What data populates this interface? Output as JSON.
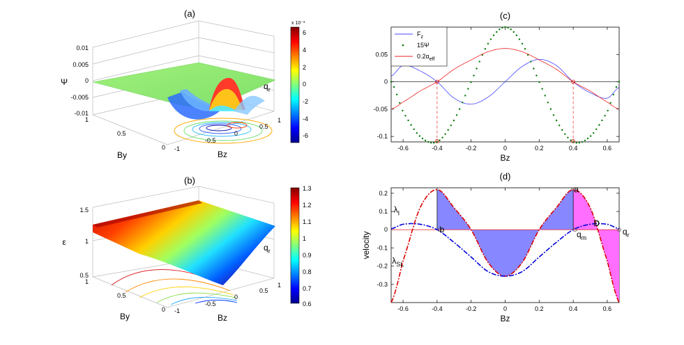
{
  "panels": {
    "a": {
      "title": "(a)",
      "zlabel": "Ψ",
      "ylabel": "By",
      "xlabel": "Bz",
      "z_ticks": [
        "0.01",
        "0.005",
        "0",
        "-0.005",
        "-0.01"
      ],
      "y_ticks": [
        "1",
        "0.5",
        "0"
      ],
      "x_ticks": [
        "-1",
        "-0.5",
        "0",
        "0.5",
        "1"
      ],
      "annotation": "qr",
      "colorbar": {
        "ticks": [
          "6",
          "4",
          "2",
          "0",
          "-2",
          "-4",
          "-6"
        ],
        "exponent": "x 10⁻³"
      }
    },
    "b": {
      "title": "(b)",
      "zlabel": "ε",
      "ylabel": "By",
      "xlabel": "Bz",
      "z_ticks": [
        "1.5",
        "1",
        "0.5"
      ],
      "y_ticks": [
        "1",
        "0.5",
        "0"
      ],
      "x_ticks": [
        "-1",
        "-0.5",
        "0",
        "0.5",
        "1"
      ],
      "annotation": "qr",
      "colorbar": {
        "ticks": [
          "1.3",
          "1.2",
          "1.1",
          "1",
          "0.9",
          "0.8",
          "0.7",
          "0.6"
        ]
      }
    }
  },
  "chart_data": [
    {
      "panel": "c",
      "type": "line",
      "title": "(c)",
      "xlabel": "Bz",
      "ylabel": "",
      "xlim": [
        -0.67,
        0.67
      ],
      "ylim": [
        -0.11,
        0.1
      ],
      "x_ticks": [
        -0.6,
        -0.4,
        -0.2,
        0,
        0.2,
        0.4,
        0.6
      ],
      "x_tick_labels": [
        "-0.6",
        "-0.4",
        "-0.2",
        "0",
        "0.2",
        "0.4",
        "0.6"
      ],
      "y_ticks": [
        0.05,
        0,
        -0.05,
        -0.1
      ],
      "y_tick_labels": [
        "0.05",
        "0",
        "-0.05",
        "-0.1"
      ],
      "legend_position": "top-left",
      "series": [
        {
          "name": "F",
          "sub": "z",
          "color": "#4444ff",
          "style": "solid",
          "x": [
            -0.67,
            -0.6,
            -0.5,
            -0.4,
            -0.3,
            -0.2,
            -0.1,
            0,
            0.1,
            0.2,
            0.3,
            0.4,
            0.5,
            0.6,
            0.67
          ],
          "y": [
            0.01,
            0.03,
            0.02,
            0,
            -0.03,
            -0.041,
            -0.028,
            0,
            0.028,
            0.041,
            0.03,
            0,
            -0.02,
            -0.03,
            -0.01
          ]
        },
        {
          "name": "15Ψ",
          "sub": "",
          "color": "#007700",
          "style": "dots",
          "x": [
            -0.67,
            -0.6,
            -0.5,
            -0.4,
            -0.3,
            -0.2,
            -0.1,
            0,
            0.1,
            0.2,
            0.3,
            0.4,
            0.5,
            0.6,
            0.67
          ],
          "y": [
            0,
            -0.055,
            -0.1,
            -0.11,
            -0.07,
            0,
            0.07,
            0.1,
            0.07,
            0,
            -0.07,
            -0.11,
            -0.1,
            -0.055,
            0
          ]
        },
        {
          "name": "0.2α",
          "sub": "eff",
          "color": "#ee2222",
          "style": "solid",
          "x": [
            -0.67,
            -0.6,
            -0.5,
            -0.4,
            -0.3,
            -0.2,
            -0.1,
            0,
            0.1,
            0.2,
            0.3,
            0.4,
            0.5,
            0.6,
            0.67
          ],
          "y": [
            -0.05,
            -0.037,
            -0.017,
            0,
            0.023,
            0.04,
            0.055,
            0.061,
            0.055,
            0.04,
            0.023,
            0,
            -0.017,
            -0.037,
            -0.05
          ]
        }
      ],
      "markers_x": [
        -0.4,
        0.4
      ]
    },
    {
      "panel": "d",
      "type": "line",
      "title": "(d)",
      "xlabel": "Bz",
      "ylabel": "velocity",
      "xlim": [
        -0.67,
        0.67
      ],
      "ylim": [
        -0.4,
        0.23
      ],
      "x_ticks": [
        -0.6,
        -0.4,
        -0.2,
        0,
        0.2,
        0.4,
        0.6
      ],
      "x_tick_labels": [
        "-0.6",
        "-0.4",
        "-0.2",
        "0",
        "0.2",
        "0.4",
        "0.6"
      ],
      "y_ticks": [
        0.2,
        0.1,
        0,
        -0.1,
        -0.2,
        -0.3
      ],
      "y_tick_labels": [
        "0.2",
        "0.1",
        "0",
        "-0.1",
        "-0.2",
        "-0.3"
      ],
      "series": [
        {
          "name": "λSL",
          "color": "#dd0000",
          "style": "dashdot",
          "x": [
            -0.67,
            -0.6,
            -0.5,
            -0.4,
            -0.3,
            -0.2,
            -0.1,
            0,
            0.1,
            0.2,
            0.3,
            0.4,
            0.5,
            0.6,
            0.67
          ],
          "y": [
            -0.4,
            -0.17,
            0.12,
            0.22,
            0.12,
            0,
            -0.18,
            -0.255,
            -0.18,
            0,
            0.12,
            0.22,
            0.12,
            -0.17,
            -0.4
          ]
        },
        {
          "name": "λI",
          "color": "#0000dd",
          "style": "dashdot",
          "x": [
            -0.67,
            -0.6,
            -0.5,
            -0.4,
            -0.3,
            -0.2,
            -0.1,
            0,
            0.1,
            0.2,
            0.3,
            0.4,
            0.5,
            0.6,
            0.67
          ],
          "y": [
            0.005,
            0.03,
            0.03,
            0,
            -0.07,
            -0.15,
            -0.23,
            -0.255,
            -0.23,
            -0.15,
            -0.07,
            0,
            0.03,
            0.03,
            0.005
          ]
        }
      ],
      "labels": [
        {
          "text": "λ",
          "sub": "I",
          "x": -0.655,
          "y": 0.11
        },
        {
          "text": "λ",
          "sub": "SL",
          "x": -0.665,
          "y": -0.17
        },
        {
          "text": "a",
          "sub": "",
          "x": 0.405,
          "y": 0.22
        },
        {
          "text": "b",
          "sub": "",
          "x": -0.385,
          "y": 0
        },
        {
          "text": "D",
          "sub": "",
          "x": 0.52,
          "y": 0.035
        },
        {
          "text": "q",
          "sub": "m",
          "x": 0.42,
          "y": -0.025
        },
        {
          "text": "q",
          "sub": "r",
          "x": 0.69,
          "y": -0.01
        }
      ],
      "fill_colors": {
        "blue": "#7a7aff",
        "magenta": "#ff66ff"
      }
    }
  ]
}
